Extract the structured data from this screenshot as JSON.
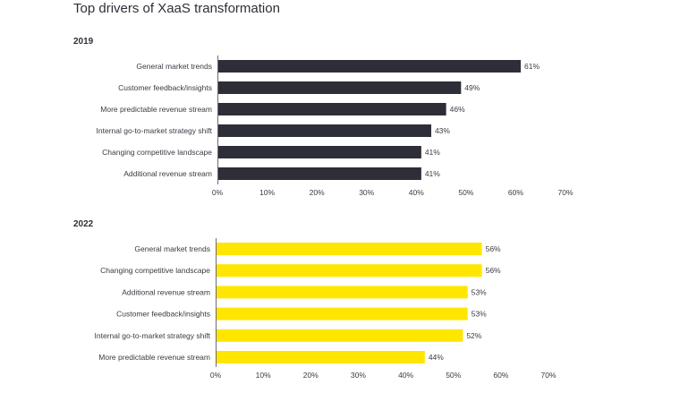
{
  "title": "Top drivers of XaaS transformation",
  "chart_data": [
    {
      "type": "bar",
      "orientation": "horizontal",
      "title": "2019",
      "color": "#2e2e38",
      "categories": [
        "General market trends",
        "Customer feedback/insights",
        "More predictable revenue stream",
        "Internal go-to-market strategy shift",
        "Changing competitive landscape",
        "Additional revenue stream"
      ],
      "values": [
        61,
        49,
        46,
        43,
        41,
        41
      ],
      "value_labels": [
        "61%",
        "49%",
        "46%",
        "43%",
        "41%",
        "41%"
      ],
      "xlim": [
        0,
        70
      ],
      "x_ticks": [
        0,
        10,
        20,
        30,
        40,
        50,
        60,
        70
      ],
      "x_tick_labels": [
        "0%",
        "10%",
        "20%",
        "30%",
        "40%",
        "50%",
        "60%",
        "70%"
      ],
      "grid": false,
      "legend": "none"
    },
    {
      "type": "bar",
      "orientation": "horizontal",
      "title": "2022",
      "color": "#ffe600",
      "categories": [
        "General market trends",
        "Changing competitive landscape",
        "Additional revenue stream",
        "Customer feedback/insights",
        "Internal go-to-market strategy shift",
        "More predictable revenue stream"
      ],
      "values": [
        56,
        56,
        53,
        53,
        52,
        44
      ],
      "value_labels": [
        "56%",
        "56%",
        "53%",
        "53%",
        "52%",
        "44%"
      ],
      "xlim": [
        0,
        70
      ],
      "x_ticks": [
        0,
        10,
        20,
        30,
        40,
        50,
        60,
        70
      ],
      "x_tick_labels": [
        "0%",
        "10%",
        "20%",
        "30%",
        "40%",
        "50%",
        "60%",
        "70%"
      ],
      "grid": false,
      "legend": "none"
    }
  ]
}
